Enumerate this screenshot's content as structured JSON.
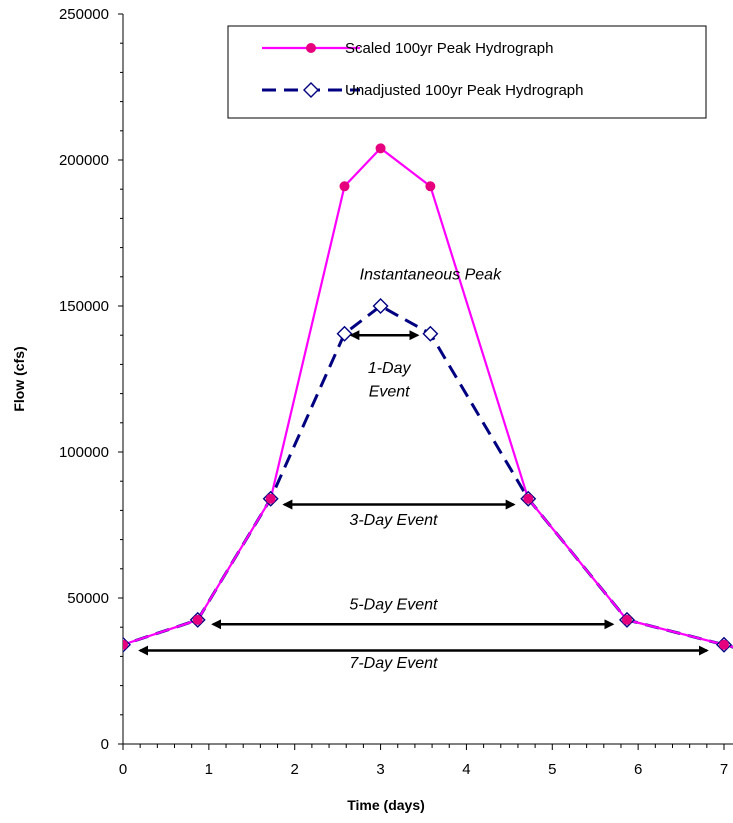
{
  "chart_data": {
    "type": "line",
    "xlabel": "Time (days)",
    "ylabel": "Flow (cfs)",
    "xlim": [
      0,
      7
    ],
    "ylim": [
      0,
      250000
    ],
    "x_ticks": [
      "0",
      "1",
      "2",
      "3",
      "4",
      "5",
      "6",
      "7"
    ],
    "y_ticks": [
      "0",
      "50000",
      "100000",
      "150000",
      "200000",
      "250000"
    ],
    "grid": false,
    "legend_position": "top-right",
    "series": [
      {
        "name": "Scaled 100yr Peak Hydrograph",
        "color": "#ff00ff",
        "marker_color": "#e6007e",
        "line_style": "solid",
        "marker": "circle",
        "x": [
          0,
          0.87,
          1.72,
          2.58,
          3.0,
          3.58,
          4.72,
          5.87,
          7.0
        ],
        "y": [
          34000,
          42500,
          84000,
          191000,
          204000,
          191000,
          84000,
          42500,
          34000
        ]
      },
      {
        "name": "Unadjusted 100yr Peak Hydrograph",
        "color": "#000080",
        "line_style": "dashed",
        "marker": "diamond",
        "x": [
          0,
          0.87,
          1.72,
          2.58,
          3.0,
          3.58,
          4.72,
          5.87,
          7.0
        ],
        "y": [
          34000,
          42500,
          84000,
          140500,
          150000,
          140500,
          84000,
          42500,
          34000
        ]
      }
    ],
    "annotations": [
      {
        "text": "Instantaneous Peak",
        "x": 3.58,
        "y": 159000
      },
      {
        "text": "1-Day",
        "x": 3.1,
        "y": 127000
      },
      {
        "text": "Event",
        "x": 3.1,
        "y": 119000
      },
      {
        "text": "3-Day Event",
        "x": 3.15,
        "y": 75000
      },
      {
        "text": "5-Day Event",
        "x": 3.15,
        "y": 46000
      },
      {
        "text": "7-Day Event",
        "x": 3.15,
        "y": 26000
      }
    ],
    "arrows": [
      {
        "label": "1-Day",
        "x1": 2.66,
        "x2": 3.43,
        "y": 140000
      },
      {
        "label": "3-Day",
        "x1": 1.88,
        "x2": 4.55,
        "y": 82000
      },
      {
        "label": "5-Day",
        "x1": 1.05,
        "x2": 5.7,
        "y": 41000
      },
      {
        "label": "7-Day",
        "x1": 0.2,
        "x2": 6.8,
        "y": 32000
      }
    ]
  }
}
